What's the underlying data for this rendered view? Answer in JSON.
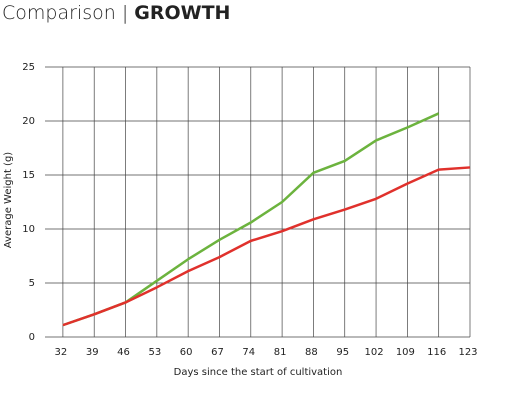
{
  "chart_data": {
    "type": "line",
    "title": "Comparison",
    "title_separator": "|",
    "title_emphasis": "GROWTH",
    "x_label": "Days since the start of cultivation",
    "y_label": "Average Weight (g)",
    "x": [
      32,
      39,
      46,
      53,
      60,
      67,
      74,
      81,
      88,
      95,
      102,
      109,
      116,
      123
    ],
    "series": [
      {
        "color": "#6cb33e",
        "values": [
          1.1,
          2.1,
          3.2,
          5.2,
          7.2,
          9.0,
          10.6,
          12.5,
          15.2,
          16.3,
          18.2,
          19.4,
          20.7,
          null
        ]
      },
      {
        "color": "#e0312c",
        "values": [
          1.1,
          2.1,
          3.2,
          4.6,
          6.1,
          7.4,
          8.9,
          9.8,
          10.9,
          11.8,
          12.8,
          14.2,
          15.5,
          15.7
        ]
      }
    ],
    "xlim": [
      28,
      123
    ],
    "xticks": [
      32,
      39,
      46,
      53,
      60,
      67,
      74,
      81,
      88,
      95,
      102,
      109,
      116,
      123
    ],
    "ylim": [
      0,
      25
    ],
    "yticks": [
      0,
      5,
      10,
      15,
      20,
      25
    ],
    "grid": true
  }
}
